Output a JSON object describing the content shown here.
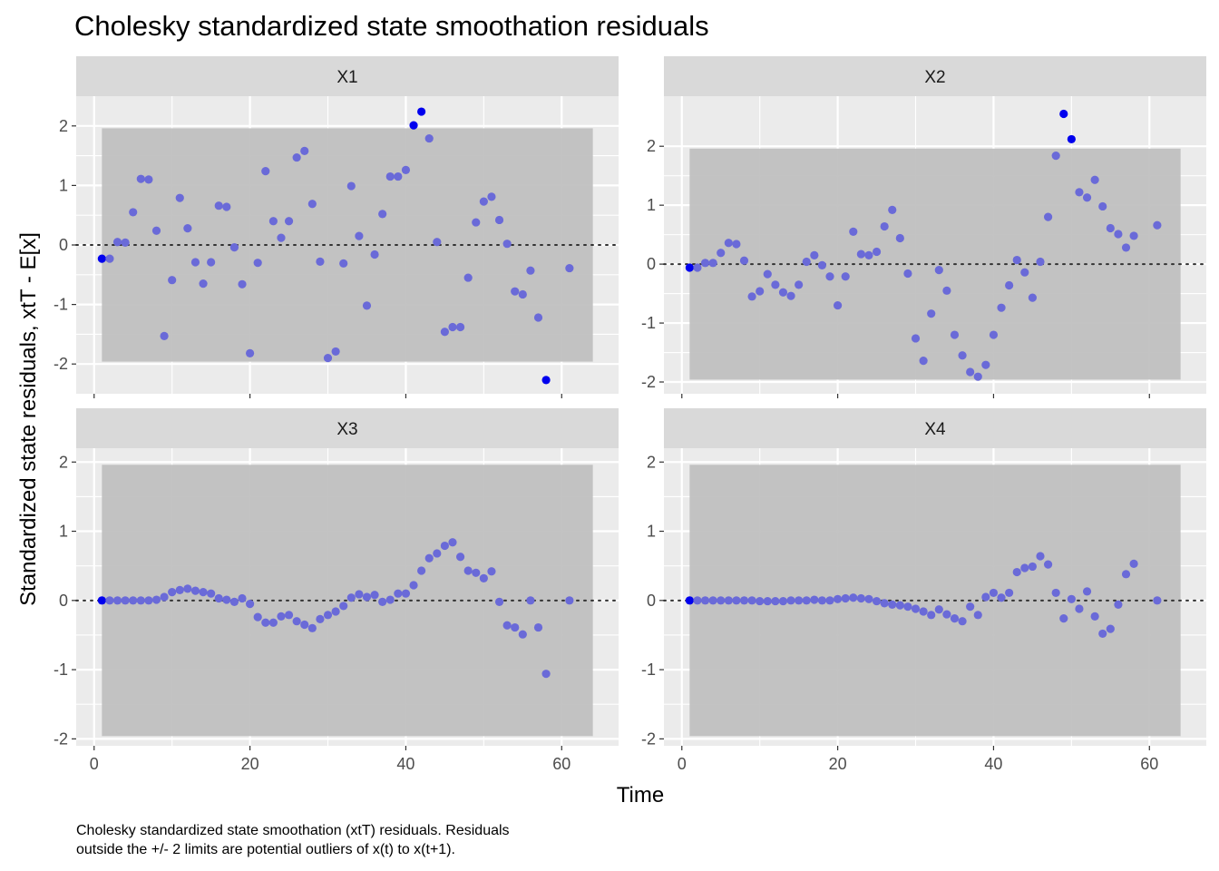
{
  "chart_data": {
    "type": "scatter",
    "title": "Cholesky standardized state smoothation residuals",
    "xlabel": "Time",
    "ylabel": "Standardized state residuals, xtT - E[x]",
    "caption_lines": [
      "Cholesky standardized state smoothation (xtT) residuals. Residuals",
      "outside the +/- 2 limits are potential outliers of x(t) to x(t+1)."
    ],
    "band": [
      -1.96,
      1.96
    ],
    "band_x": [
      1,
      64
    ],
    "reference_line": 0,
    "grid": true,
    "colors": {
      "panel_background": "#ebebeb",
      "strip_background": "#d9d9d9",
      "band": "#bebebe",
      "point": "#6a6ad8",
      "outlier_point": "#0000ee",
      "reference_line": "#333333"
    },
    "panels": [
      {
        "name": "X1",
        "xlim": [
          -2.3,
          67.3
        ],
        "ylim": [
          -2.5,
          2.5
        ],
        "x_ticks": [
          "0",
          "20",
          "40",
          "60"
        ],
        "x_tick_values": [
          0,
          20,
          40,
          60
        ],
        "y_ticks": [
          "-2",
          "-1",
          "0",
          "1",
          "2"
        ],
        "y_tick_values": [
          -2,
          -1,
          0,
          1,
          2
        ],
        "x": [
          1,
          2,
          3,
          4,
          5,
          6,
          7,
          8,
          9,
          10,
          11,
          12,
          13,
          14,
          15,
          16,
          17,
          18,
          19,
          20,
          21,
          22,
          23,
          24,
          25,
          26,
          27,
          28,
          29,
          30,
          31,
          32,
          33,
          34,
          35,
          36,
          37,
          38,
          39,
          40,
          41,
          42,
          43,
          44,
          45,
          46,
          47,
          48,
          49,
          50,
          51,
          52,
          53,
          54,
          55,
          56,
          57,
          58,
          61
        ],
        "y": [
          -0.23,
          -0.23,
          0.05,
          0.04,
          0.55,
          1.11,
          1.1,
          0.24,
          -1.53,
          -0.59,
          0.79,
          0.28,
          -0.29,
          -0.65,
          -0.29,
          0.66,
          0.64,
          -0.04,
          -0.66,
          -1.82,
          -0.3,
          1.24,
          0.4,
          0.12,
          0.4,
          1.47,
          1.58,
          0.69,
          -0.28,
          -1.9,
          -1.79,
          -0.31,
          0.99,
          0.15,
          -1.02,
          -0.16,
          0.52,
          1.15,
          1.15,
          1.26,
          2.01,
          2.24,
          1.79,
          0.05,
          -1.46,
          -1.38,
          -1.38,
          -0.55,
          0.38,
          0.73,
          0.81,
          0.42,
          0.02,
          -0.78,
          -0.83,
          -0.43,
          -1.22,
          -2.27,
          -0.39
        ]
      },
      {
        "name": "X2",
        "xlim": [
          -2.3,
          67.3
        ],
        "ylim": [
          -2.2,
          2.85
        ],
        "x_ticks": [
          "0",
          "20",
          "40",
          "60"
        ],
        "x_tick_values": [
          0,
          20,
          40,
          60
        ],
        "y_ticks": [
          "-2",
          "-1",
          "0",
          "1",
          "2"
        ],
        "y_tick_values": [
          -2,
          -1,
          0,
          1,
          2
        ],
        "x": [
          1,
          2,
          3,
          4,
          5,
          6,
          7,
          8,
          9,
          10,
          11,
          12,
          13,
          14,
          15,
          16,
          17,
          18,
          19,
          20,
          21,
          22,
          23,
          24,
          25,
          26,
          27,
          28,
          29,
          30,
          31,
          32,
          33,
          34,
          35,
          36,
          37,
          38,
          39,
          40,
          41,
          42,
          43,
          44,
          45,
          46,
          47,
          48,
          49,
          50,
          51,
          52,
          53,
          54,
          55,
          56,
          57,
          58,
          61
        ],
        "y": [
          -0.06,
          -0.06,
          0.02,
          0.02,
          0.19,
          0.36,
          0.34,
          0.06,
          -0.55,
          -0.46,
          -0.17,
          -0.35,
          -0.48,
          -0.54,
          -0.35,
          0.04,
          0.15,
          -0.02,
          -0.21,
          -0.7,
          -0.21,
          0.55,
          0.17,
          0.15,
          0.21,
          0.64,
          0.92,
          0.44,
          -0.16,
          -1.26,
          -1.64,
          -0.84,
          -0.1,
          -0.45,
          -1.2,
          -1.55,
          -1.83,
          -1.91,
          -1.71,
          -1.2,
          -0.74,
          -0.36,
          0.07,
          -0.14,
          -0.57,
          0.04,
          0.8,
          1.84,
          2.55,
          2.12,
          1.22,
          1.13,
          1.43,
          0.98,
          0.61,
          0.51,
          0.28,
          0.48,
          0.66
        ]
      },
      {
        "name": "X3",
        "xlim": [
          -2.3,
          67.3
        ],
        "ylim": [
          -2.1,
          2.2
        ],
        "x_ticks": [
          "0",
          "20",
          "40",
          "60"
        ],
        "x_tick_values": [
          0,
          20,
          40,
          60
        ],
        "y_ticks": [
          "-2",
          "-1",
          "0",
          "1",
          "2"
        ],
        "y_tick_values": [
          -2,
          -1,
          0,
          1,
          2
        ],
        "x": [
          1,
          2,
          3,
          4,
          5,
          6,
          7,
          8,
          9,
          10,
          11,
          12,
          13,
          14,
          15,
          16,
          17,
          18,
          19,
          20,
          21,
          22,
          23,
          24,
          25,
          26,
          27,
          28,
          29,
          30,
          31,
          32,
          33,
          34,
          35,
          36,
          37,
          38,
          39,
          40,
          41,
          42,
          43,
          44,
          45,
          46,
          47,
          48,
          49,
          50,
          51,
          52,
          53,
          54,
          55,
          56,
          57,
          58,
          61
        ],
        "y": [
          0,
          0,
          0,
          0,
          0,
          0,
          0,
          0.01,
          0.05,
          0.12,
          0.15,
          0.17,
          0.14,
          0.12,
          0.1,
          0.03,
          0.01,
          -0.02,
          0.03,
          -0.05,
          -0.24,
          -0.32,
          -0.32,
          -0.23,
          -0.21,
          -0.3,
          -0.35,
          -0.4,
          -0.27,
          -0.21,
          -0.16,
          -0.08,
          0.04,
          0.09,
          0.05,
          0.08,
          -0.02,
          0.01,
          0.1,
          0.1,
          0.22,
          0.43,
          0.61,
          0.68,
          0.79,
          0.84,
          0.63,
          0.43,
          0.4,
          0.32,
          0.42,
          -0.02,
          -0.36,
          -0.39,
          -0.49,
          0,
          -0.39,
          -1.06,
          0
        ]
      },
      {
        "name": "X4",
        "xlim": [
          -2.3,
          67.3
        ],
        "ylim": [
          -2.1,
          2.2
        ],
        "x_ticks": [
          "0",
          "20",
          "40",
          "60"
        ],
        "x_tick_values": [
          0,
          20,
          40,
          60
        ],
        "y_ticks": [
          "-2",
          "-1",
          "0",
          "1",
          "2"
        ],
        "y_tick_values": [
          -2,
          -1,
          0,
          1,
          2
        ],
        "x": [
          1,
          2,
          3,
          4,
          5,
          6,
          7,
          8,
          9,
          10,
          11,
          12,
          13,
          14,
          15,
          16,
          17,
          18,
          19,
          20,
          21,
          22,
          23,
          24,
          25,
          26,
          27,
          28,
          29,
          30,
          31,
          32,
          33,
          34,
          35,
          36,
          37,
          38,
          39,
          40,
          41,
          42,
          43,
          44,
          45,
          46,
          47,
          48,
          49,
          50,
          51,
          52,
          53,
          54,
          55,
          56,
          57,
          58,
          61
        ],
        "y": [
          0,
          0,
          0,
          0,
          0,
          0,
          0,
          0,
          0,
          -0.01,
          -0.01,
          -0.01,
          -0.01,
          0,
          0,
          0,
          0.01,
          0,
          0,
          0.02,
          0.03,
          0.04,
          0.03,
          0.02,
          -0.01,
          -0.04,
          -0.06,
          -0.07,
          -0.09,
          -0.12,
          -0.16,
          -0.21,
          -0.13,
          -0.2,
          -0.26,
          -0.3,
          -0.09,
          -0.21,
          0.05,
          0.11,
          0.04,
          0.11,
          0.41,
          0.47,
          0.49,
          0.64,
          0.52,
          0.11,
          -0.26,
          0.02,
          -0.12,
          0.13,
          -0.23,
          -0.48,
          -0.41,
          -0.06,
          0.38,
          0.53,
          0
        ]
      }
    ]
  }
}
